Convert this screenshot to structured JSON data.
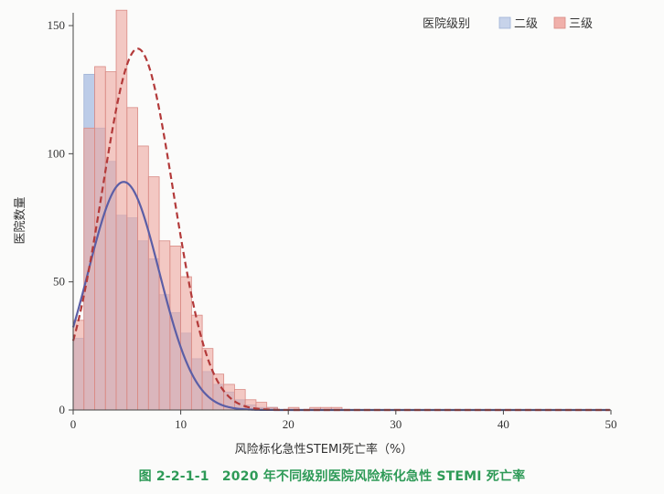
{
  "chart_data": {
    "type": "bar",
    "subtype": "histogram-with-normal-fit",
    "xlabel": "风险标化急性STEMI死亡率（%）",
    "ylabel": "医院数量",
    "xlim": [
      0,
      50
    ],
    "ylim": [
      0,
      155
    ],
    "xticks": [
      0,
      10,
      20,
      30,
      40,
      50
    ],
    "yticks": [
      0,
      50,
      100,
      150
    ],
    "bin_width": 1,
    "bin_starts": [
      0,
      1,
      2,
      3,
      4,
      5,
      6,
      7,
      8,
      9,
      10,
      11,
      12,
      13,
      14,
      15,
      16,
      17,
      18,
      19,
      20,
      21,
      22,
      23,
      24
    ],
    "legend": {
      "title": "医院级别",
      "position": "top-right",
      "items": [
        {
          "label": "二级",
          "color": "#c7d3ea"
        },
        {
          "label": "三级",
          "color": "#f0b0aa"
        }
      ]
    },
    "series": [
      {
        "name": "二级",
        "color": "#b5c6e6",
        "values": [
          28,
          131,
          110,
          97,
          76,
          75,
          66,
          59,
          45,
          38,
          30,
          20,
          15,
          10,
          7,
          4,
          2,
          1,
          1,
          0,
          0,
          0,
          0,
          0,
          0
        ],
        "fit": {
          "mean": 4.7,
          "sd": 3.3,
          "peak": 89,
          "color": "#5b5ea6",
          "style": "solid"
        }
      },
      {
        "name": "三级",
        "color": "#eda8a2",
        "values": [
          35,
          110,
          134,
          132,
          156,
          118,
          103,
          91,
          66,
          64,
          52,
          37,
          24,
          14,
          10,
          8,
          4,
          3,
          1,
          0,
          1,
          0,
          1,
          1,
          1
        ],
        "fit": {
          "mean": 6.0,
          "sd": 3.3,
          "peak": 141,
          "color": "#b33a3a",
          "style": "dashed"
        }
      }
    ]
  },
  "caption": "图 2-2-1-1　2020 年不同级别医院风险标化急性 STEMI 死亡率"
}
